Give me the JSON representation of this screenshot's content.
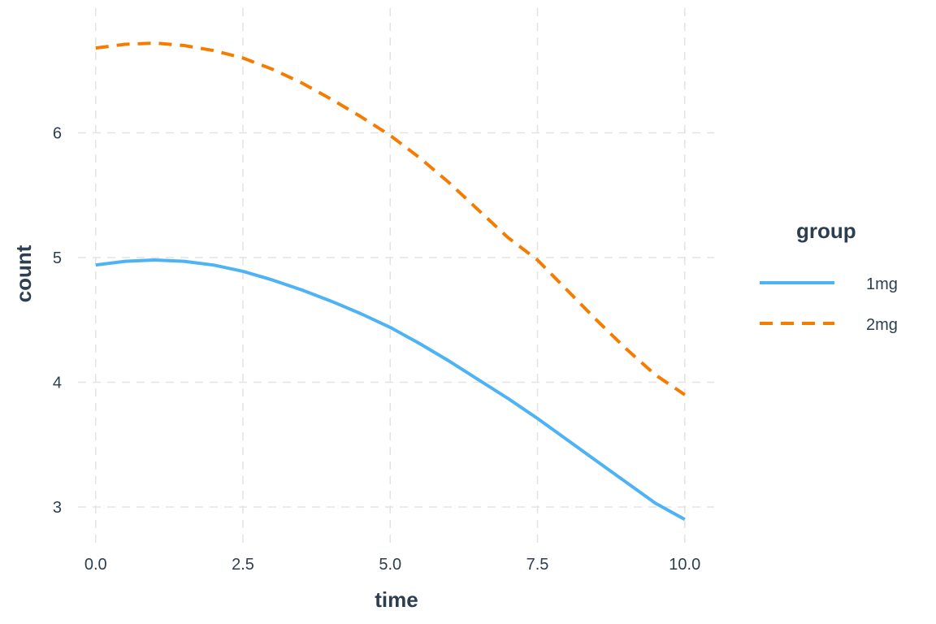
{
  "chart_data": {
    "type": "line",
    "title": "",
    "xlabel": "time",
    "ylabel": "count",
    "xlim": [
      -0.3,
      10.5
    ],
    "ylim": [
      2.7,
      7.0
    ],
    "x_ticks": [
      0.0,
      2.5,
      5.0,
      7.5,
      10.0
    ],
    "x_tick_labels": [
      "0.0",
      "2.5",
      "5.0",
      "7.5",
      "10.0"
    ],
    "y_ticks": [
      3,
      4,
      5,
      6
    ],
    "y_tick_labels": [
      "3",
      "4",
      "5",
      "6"
    ],
    "grid": true,
    "legend": {
      "title": "group",
      "position": "right"
    },
    "x": [
      0,
      0.5,
      1,
      1.5,
      2,
      2.5,
      3,
      3.5,
      4,
      4.5,
      5,
      5.5,
      6,
      6.5,
      7,
      7.5,
      8,
      8.5,
      9,
      9.5,
      10
    ],
    "series": [
      {
        "name": "1mg",
        "color": "#4db3f5",
        "dash": "solid",
        "values": [
          4.94,
          4.97,
          4.98,
          4.97,
          4.94,
          4.89,
          4.82,
          4.74,
          4.65,
          4.55,
          4.44,
          4.31,
          4.17,
          4.02,
          3.87,
          3.71,
          3.54,
          3.37,
          3.2,
          3.03,
          2.9
        ]
      },
      {
        "name": "2mg",
        "color": "#f57c00",
        "dash": "dashed",
        "values": [
          6.68,
          6.71,
          6.72,
          6.7,
          6.66,
          6.6,
          6.51,
          6.4,
          6.27,
          6.13,
          5.98,
          5.8,
          5.6,
          5.38,
          5.16,
          4.98,
          4.74,
          4.5,
          4.27,
          4.06,
          3.9
        ]
      }
    ]
  }
}
